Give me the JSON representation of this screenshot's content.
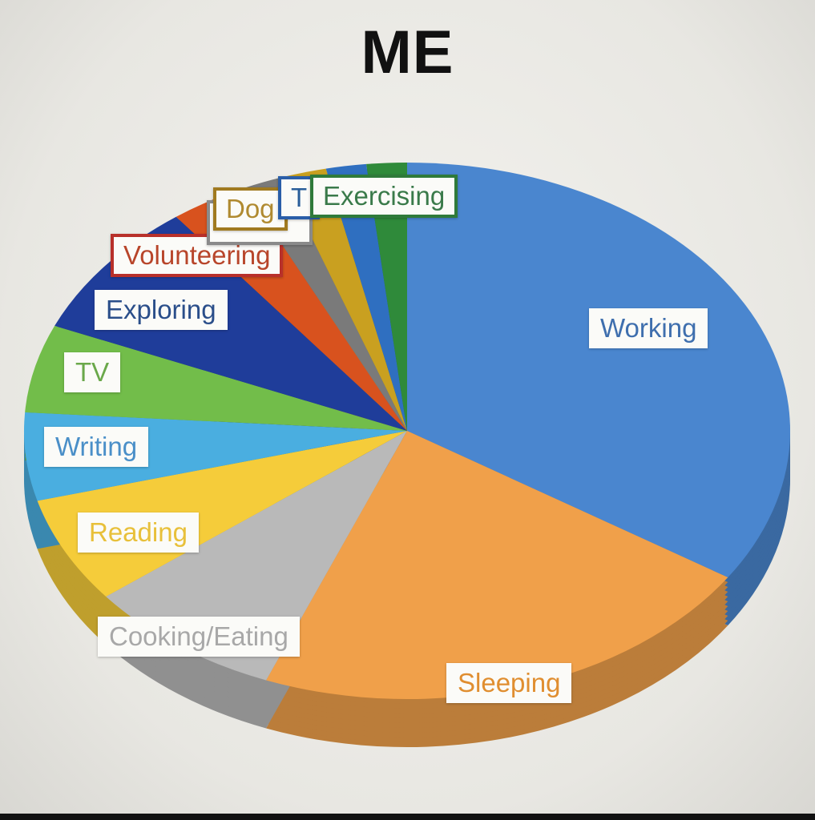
{
  "chart_data": {
    "type": "pie",
    "style": "3d-tilted",
    "title": "ME",
    "start_angle": "12 o'clock, clockwise",
    "legend": "none (data labels on slices)",
    "slices": [
      {
        "label": "Working",
        "value": 34.2,
        "color": "#4a86cf",
        "label_color": "#3f6fae"
      },
      {
        "label": "Sleeping",
        "value": 21.8,
        "color": "#f0a04a",
        "label_color": "#e08e30"
      },
      {
        "label": "Cooking/Eating",
        "value": 8.4,
        "color": "#b9b9b9",
        "label_color": "#a8a8a8"
      },
      {
        "label": "Reading",
        "value": 6.4,
        "color": "#f5cc3a",
        "label_color": "#e8c03a"
      },
      {
        "label": "Writing",
        "value": 5.3,
        "color": "#4aaee0",
        "label_color": "#4a8fc8"
      },
      {
        "label": "TV",
        "value": 5.3,
        "color": "#72bd4a",
        "label_color": "#6aa84a"
      },
      {
        "label": "Exploring",
        "value": 8.3,
        "color": "#1f3d9a",
        "label_color": "#2a4e8a"
      },
      {
        "label": "Volunteering",
        "value": 3.3,
        "color": "#d8521e",
        "label_color": "#b8452a",
        "label_border": "#b8302a"
      },
      {
        "label": "",
        "value": 1.7,
        "color": "#7a7a7a",
        "label_color": "#666666",
        "label_border": "#8a8a8a"
      },
      {
        "label": "Dog",
        "value": 1.9,
        "color": "#c9a020",
        "label_color": "#b08a30",
        "label_border": "#a07a20"
      },
      {
        "label": "T",
        "value": 1.7,
        "color": "#2f6fc0",
        "label_color": "#2a5e9a",
        "label_border": "#2a5ea8"
      },
      {
        "label": "Exercising",
        "value": 1.7,
        "color": "#2f8a3a",
        "label_color": "#3a7a4a",
        "label_border": "#2f7a3a"
      }
    ]
  }
}
